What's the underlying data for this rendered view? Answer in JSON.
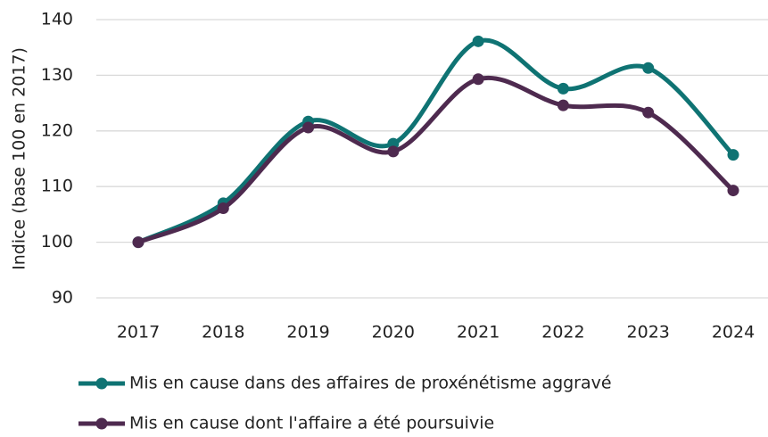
{
  "chart_data": {
    "type": "line",
    "y_axis_label": "Indice (base 100 en  2017)",
    "categories": [
      "2017",
      "2018",
      "2019",
      "2020",
      "2021",
      "2022",
      "2023",
      "2024"
    ],
    "series": [
      {
        "name": "Mis en cause dans des affaires de proxénétisme aggravé",
        "color": "#0f7373",
        "values": [
          100,
          107,
          121.7,
          117.7,
          136.1,
          127.6,
          131.3,
          115.7
        ]
      },
      {
        "name": "Mis en cause dont l'affaire a été poursuivie",
        "color": "#4e2a4f",
        "values": [
          100,
          106.1,
          120.6,
          116.3,
          129.3,
          124.6,
          123.3,
          109.3
        ]
      }
    ],
    "ylim": [
      90,
      140
    ],
    "yticks": [
      90,
      100,
      110,
      120,
      130,
      140
    ],
    "grid": true,
    "smooth": true,
    "legend": "bottom"
  }
}
